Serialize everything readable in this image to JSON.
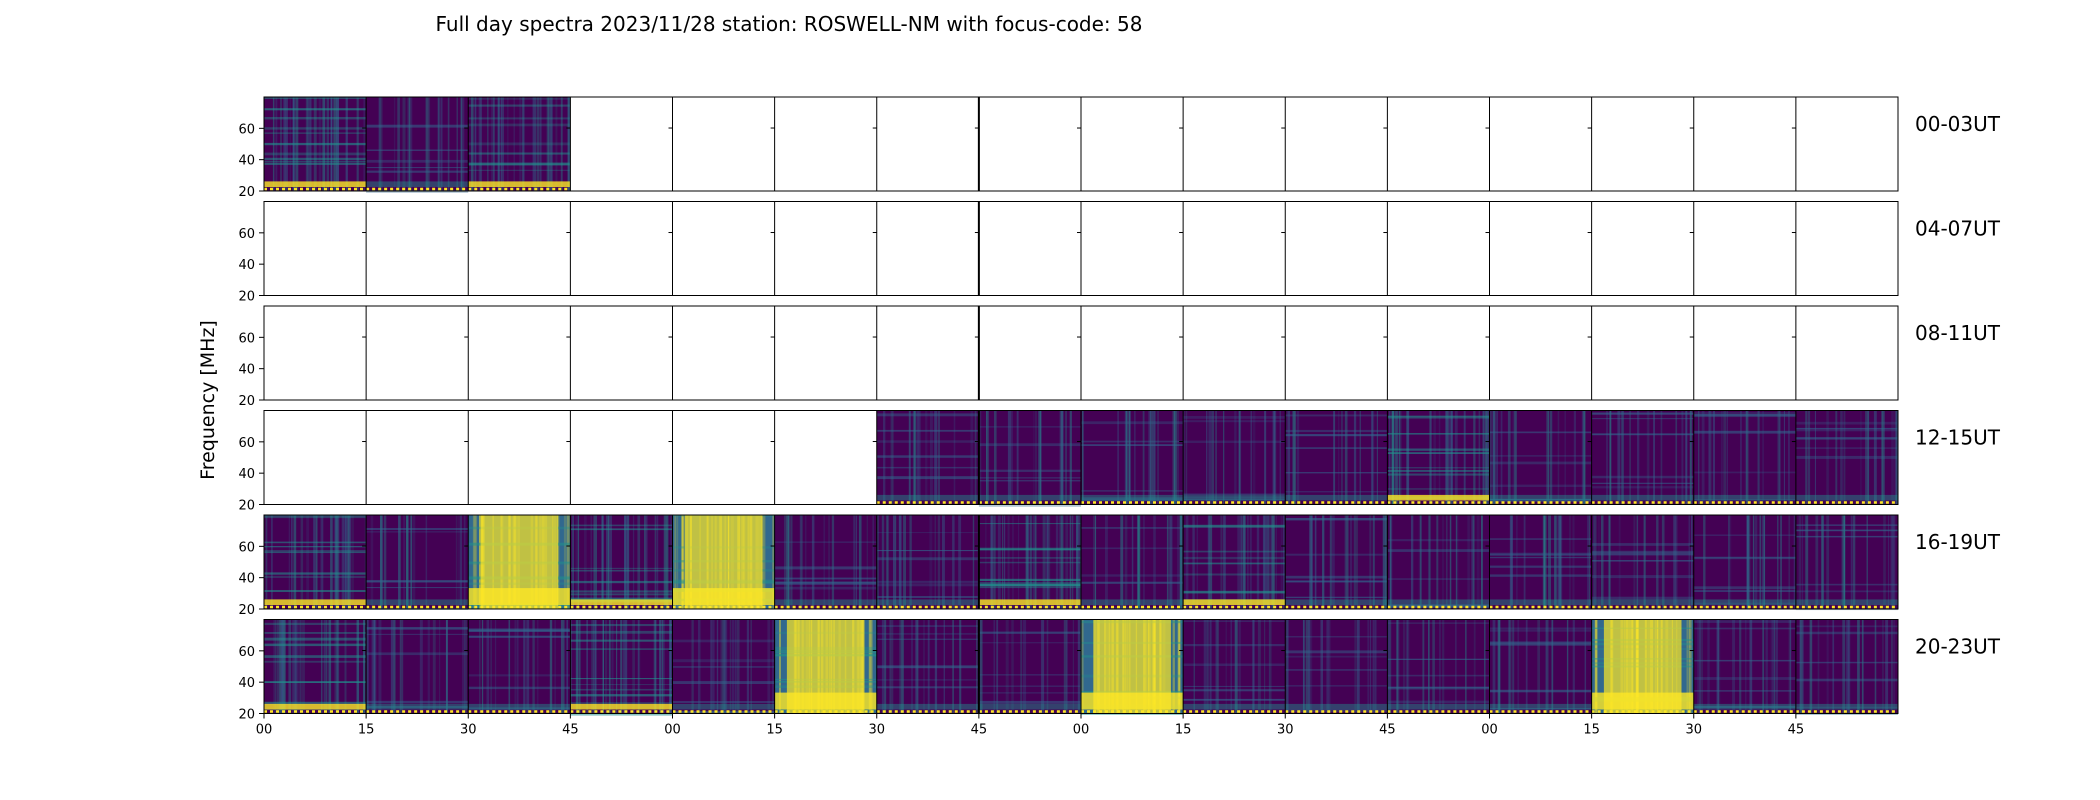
{
  "chart_data": {
    "type": "heatmap",
    "title": "Full day spectra 2023/11/28 station: ROSWELL-NM with focus-code: 58",
    "ylabel": "Frequency [MHz]",
    "ylim": [
      20,
      80
    ],
    "yticks": [
      20,
      40,
      60
    ],
    "xtick_labels": [
      "00",
      "15",
      "30",
      "45",
      "00",
      "15",
      "30",
      "45",
      "00",
      "15",
      "30",
      "45",
      "00",
      "15",
      "30",
      "45"
    ],
    "rows": [
      {
        "label": "00-03UT",
        "segments": [
          "medium",
          "low",
          "medium",
          "",
          "",
          "",
          "",
          "",
          "",
          "",
          "",
          "",
          "",
          "",
          "",
          ""
        ]
      },
      {
        "label": "04-07UT",
        "segments": [
          "",
          "",
          "",
          "",
          "",
          "",
          "",
          "",
          "",
          "",
          "",
          "",
          "",
          "",
          "",
          ""
        ]
      },
      {
        "label": "08-11UT",
        "segments": [
          "",
          "",
          "",
          "",
          "",
          "",
          "",
          "",
          "",
          "",
          "",
          "",
          "",
          "",
          "",
          ""
        ]
      },
      {
        "label": "12-15UT",
        "segments": [
          "",
          "",
          "",
          "",
          "",
          "",
          "low",
          "low",
          "low",
          "low",
          "low",
          "medium",
          "low",
          "low",
          "low",
          "low"
        ]
      },
      {
        "label": "16-19UT",
        "segments": [
          "medium",
          "low",
          "high",
          "medium",
          "high",
          "low",
          "low",
          "medium",
          "low",
          "medium",
          "low",
          "low",
          "low",
          "low",
          "low",
          "low"
        ]
      },
      {
        "label": "20-23UT",
        "segments": [
          "medium",
          "low",
          "low",
          "medium",
          "low",
          "high",
          "low",
          "low",
          "high",
          "low",
          "low",
          "low",
          "low",
          "high",
          "low",
          "low"
        ]
      }
    ]
  },
  "colors": {
    "low": "#440154",
    "medium": "#31688e",
    "high": "#fde725",
    "accent": "#21918c",
    "axis": "#000000"
  }
}
